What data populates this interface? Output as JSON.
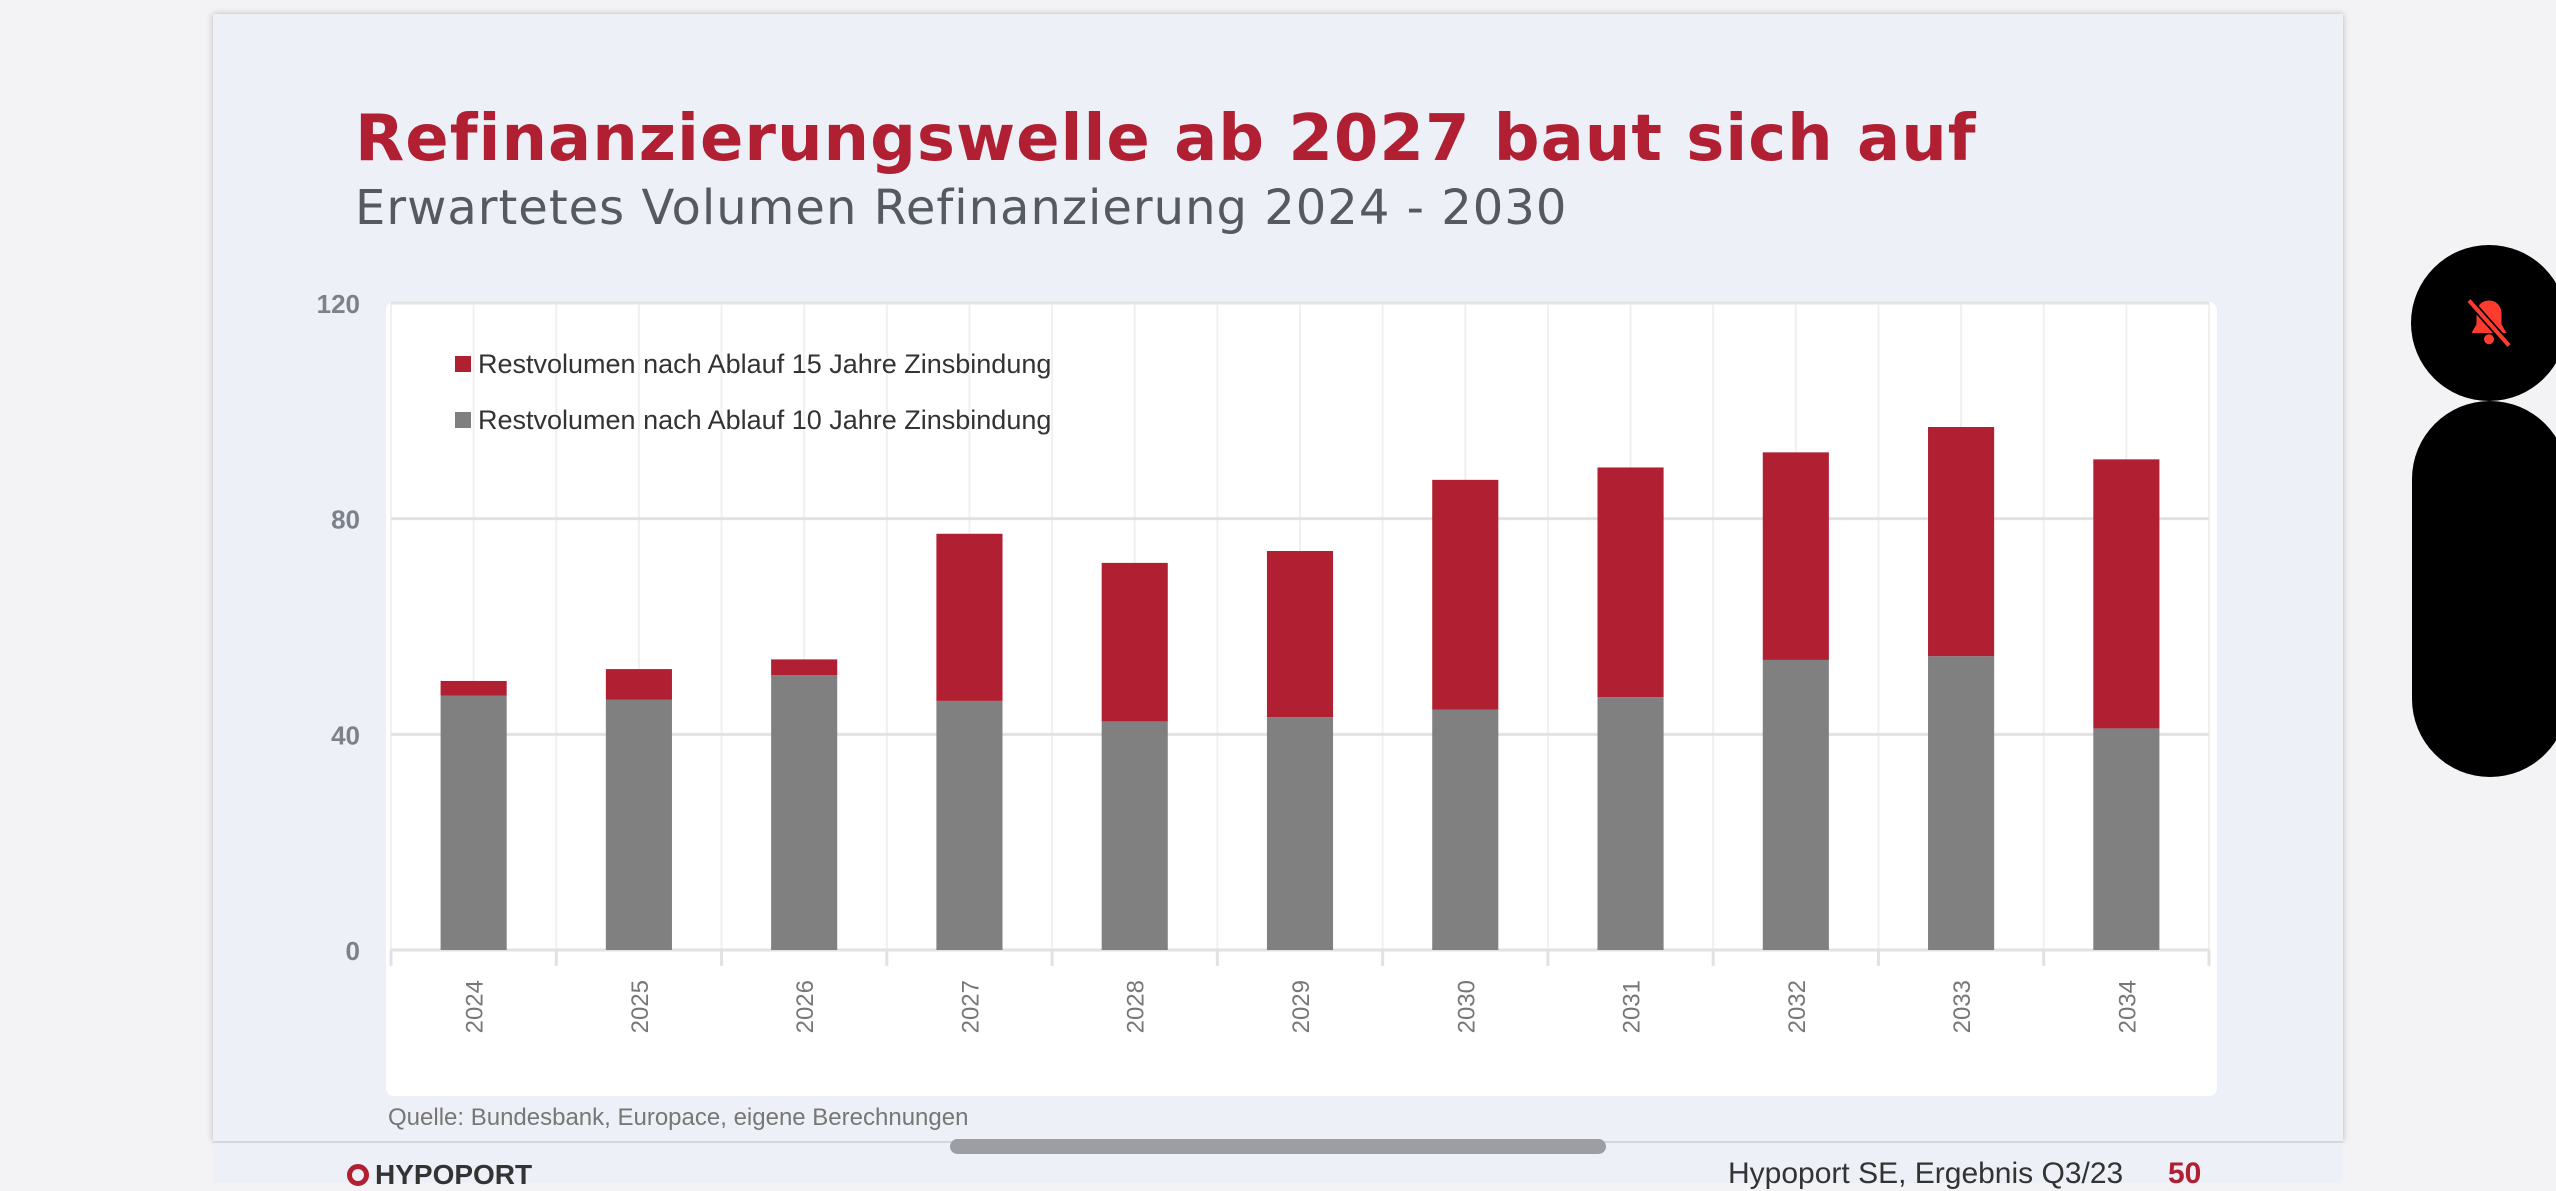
{
  "slide": {
    "title": "Refinanzierungswelle ab 2027 baut sich auf",
    "subtitle": "Erwartetes Volumen Refinanzierung 2024 - 2030",
    "source": "Quelle: Bundesbank, Europace, eigene Berechnungen"
  },
  "footer": {
    "logo": "HYPOPORT",
    "text": "Hypoport SE, Ergebnis Q3/23",
    "page": "50"
  },
  "overlay": {
    "mute_icon": "bell-slash-icon",
    "mute_color": "#ff3b30"
  },
  "chart_data": {
    "type": "bar",
    "stacked": true,
    "categories": [
      "2024",
      "2025",
      "2026",
      "2027",
      "2028",
      "2029",
      "2030",
      "2031",
      "2032",
      "2033",
      "2034"
    ],
    "series": [
      {
        "name": "Restvolumen nach Ablauf 10 Jahre Zinsbindung",
        "color": "#808080",
        "values": [
          47.2,
          46.4,
          51.0,
          46.2,
          42.4,
          43.2,
          44.6,
          46.9,
          53.8,
          54.5,
          41.1
        ]
      },
      {
        "name": "Restvolumen nach Ablauf 15 Jahre Zinsbindung",
        "color": "#b01f32",
        "values": [
          2.7,
          5.7,
          2.9,
          31.0,
          29.4,
          30.8,
          42.6,
          42.6,
          38.5,
          42.5,
          49.9
        ]
      }
    ],
    "legend_order": [
      1,
      0
    ],
    "legend_position": "top-left",
    "ylim": [
      0,
      120
    ],
    "yticks": [
      "0",
      "40",
      "80",
      "120"
    ],
    "grid": true,
    "xlabel": "",
    "ylabel": ""
  }
}
